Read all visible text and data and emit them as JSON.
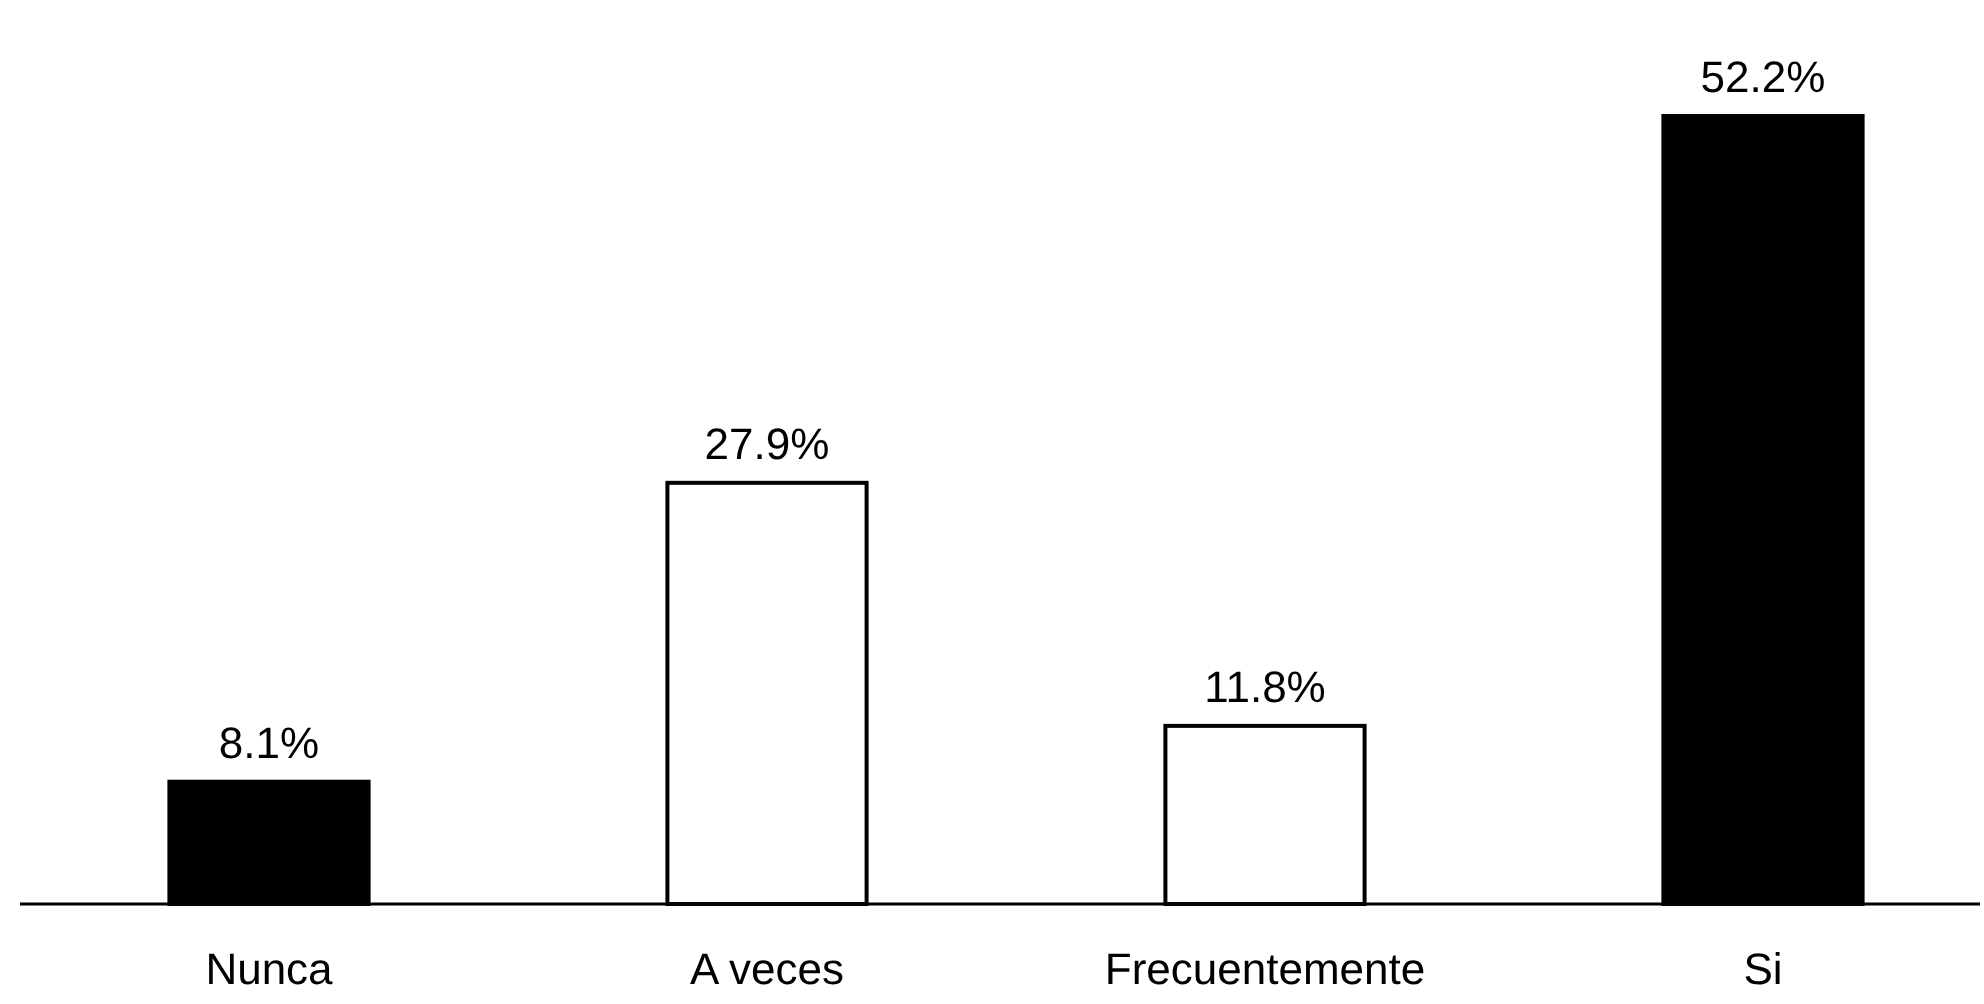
{
  "chart_data": {
    "type": "bar",
    "categories": [
      "Nunca",
      "A veces",
      "Frecuentemente",
      "Si"
    ],
    "values": [
      8.1,
      27.9,
      11.8,
      52.2
    ],
    "colors": [
      "#000000",
      "#ffffff",
      "#ffffff",
      "#000000"
    ],
    "data_labels": true,
    "value_labels": [
      "8.1%",
      "27.9%",
      "11.8%",
      "52.2%"
    ]
  }
}
